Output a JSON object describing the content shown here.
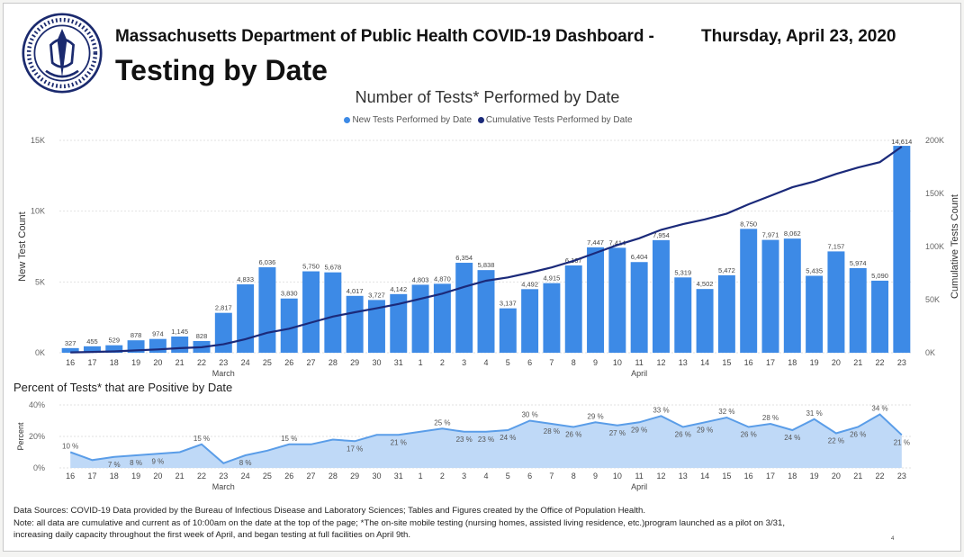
{
  "header": {
    "agency": "Massachusetts Department of Public Health COVID-19 Dashboard -",
    "date": "Thursday, April 23, 2020",
    "title": "Testing by Date",
    "seal_text_top": "COMMONWEALTH OF MASSACHUSETTS",
    "seal_text_bottom": "DEPARTMENT OF PUBLIC HEALTH"
  },
  "colors": {
    "bar": "#3d8ae6",
    "line": "#1b2a7a",
    "area_fill": "#bfd9f7",
    "area_line": "#5a9de8",
    "grid": "#e2e2e2"
  },
  "chart_data": [
    {
      "type": "bar",
      "title": "Number of Tests* Performed by Date",
      "legend": {
        "bar": "New Tests Performed by Date",
        "line": "Cumulative Tests Performed by Date"
      },
      "ylabel": "New Test Count",
      "y2label": "Cumulative Tests Count",
      "ylim": [
        0,
        15000
      ],
      "y2lim": [
        0,
        200000
      ],
      "yticks": [
        0,
        5000,
        10000,
        15000
      ],
      "ytick_labels": [
        "0K",
        "5K",
        "10K",
        "15K"
      ],
      "y2ticks": [
        0,
        50000,
        100000,
        150000,
        200000
      ],
      "y2tick_labels": [
        "0K",
        "50K",
        "100K",
        "150K",
        "200K"
      ],
      "categories": [
        "16",
        "17",
        "18",
        "19",
        "20",
        "21",
        "22",
        "23",
        "24",
        "25",
        "26",
        "27",
        "28",
        "29",
        "30",
        "31",
        "1",
        "2",
        "3",
        "4",
        "5",
        "6",
        "7",
        "8",
        "9",
        "10",
        "11",
        "12",
        "13",
        "14",
        "15",
        "16",
        "17",
        "18",
        "19",
        "20",
        "21",
        "22",
        "23"
      ],
      "month_labels": [
        {
          "label": "March",
          "index": 7
        },
        {
          "label": "April",
          "index": 26
        }
      ],
      "values": [
        327,
        455,
        529,
        878,
        974,
        1145,
        828,
        2817,
        4833,
        6036,
        3830,
        5750,
        5678,
        4017,
        3727,
        4142,
        4803,
        4870,
        6354,
        5838,
        3137,
        4492,
        4915,
        6167,
        7447,
        7414,
        6404,
        7954,
        5319,
        4502,
        5472,
        8750,
        7971,
        8062,
        5435,
        7157,
        5974,
        5090,
        14614
      ],
      "value_labels": [
        "327",
        "455",
        "529",
        "878",
        "974",
        "1,145",
        "828",
        "2,817",
        "4,833",
        "6,036",
        "3,830",
        "5,750",
        "5,678",
        "4,017",
        "3,727",
        "4,142",
        "4,803",
        "4,870",
        "6,354",
        "5,838",
        "3,137",
        "4,492",
        "4,915",
        "6,167",
        "7,447",
        "7,414",
        "6,404",
        "7,954",
        "5,319",
        "4,502",
        "5,472",
        "8,750",
        "7,971",
        "8,062",
        "5,435",
        "7,157",
        "5,974",
        "5,090",
        "14,614"
      ],
      "cumulative": [
        327,
        782,
        1311,
        2189,
        3163,
        4308,
        5136,
        7953,
        12786,
        18822,
        22652,
        28402,
        34080,
        38097,
        41824,
        45966,
        50769,
        55639,
        61993,
        67831,
        70968,
        75460,
        80375,
        86542,
        93989,
        101403,
        107807,
        115761,
        121080,
        125582,
        131054,
        139804,
        147775,
        155837,
        161272,
        168429,
        174403,
        179493,
        194107
      ]
    },
    {
      "type": "area",
      "title": "Percent of Tests* that are Positive by Date",
      "ylabel": "Percent",
      "ylim": [
        0,
        40
      ],
      "yticks": [
        0,
        20,
        40
      ],
      "ytick_labels": [
        "0%",
        "20%",
        "40%"
      ],
      "categories": [
        "16",
        "17",
        "18",
        "19",
        "20",
        "21",
        "22",
        "23",
        "24",
        "25",
        "26",
        "27",
        "28",
        "29",
        "30",
        "31",
        "1",
        "2",
        "3",
        "4",
        "5",
        "6",
        "7",
        "8",
        "9",
        "10",
        "11",
        "12",
        "13",
        "14",
        "15",
        "16",
        "17",
        "18",
        "19",
        "20",
        "21",
        "22",
        "23"
      ],
      "month_labels": [
        {
          "label": "March",
          "index": 7
        },
        {
          "label": "April",
          "index": 26
        }
      ],
      "values": [
        10,
        5,
        7,
        8,
        9,
        10,
        15,
        3,
        8,
        11,
        15,
        15,
        18,
        17,
        21,
        21,
        23,
        25,
        23,
        23,
        24,
        30,
        28,
        26,
        29,
        27,
        29,
        33,
        26,
        29,
        32,
        26,
        28,
        24,
        31,
        22,
        26,
        34,
        21
      ],
      "value_labels": [
        "10 %",
        "",
        "7 %",
        "8 %",
        "9 %",
        "",
        "15 %",
        "",
        "8 %",
        "",
        "15 %",
        "",
        "",
        "17 %",
        "",
        "21 %",
        "",
        "25 %",
        "23 %",
        "23 %",
        "24 %",
        "30 %",
        "28 %",
        "26 %",
        "29 %",
        "27 %",
        "29 %",
        "33 %",
        "26 %",
        "29 %",
        "32 %",
        "26 %",
        "28 %",
        "24 %",
        "31 %",
        "22 %",
        "26 %",
        "34 %",
        "21 %"
      ]
    }
  ],
  "footnotes": [
    "Data Sources: COVID-19 Data provided by the Bureau of Infectious Disease and Laboratory Sciences; Tables and Figures created by the Office of Population Health.",
    "Note: all data are cumulative and current as of 10:00am on the date at the top of the page; *The on-site mobile testing (nursing homes, assisted living residence, etc.)program launched as a pilot on 3/31,",
    "increasing daily capacity throughout the first week of April, and began testing at full facilities on April 9th."
  ],
  "page_number": "4"
}
